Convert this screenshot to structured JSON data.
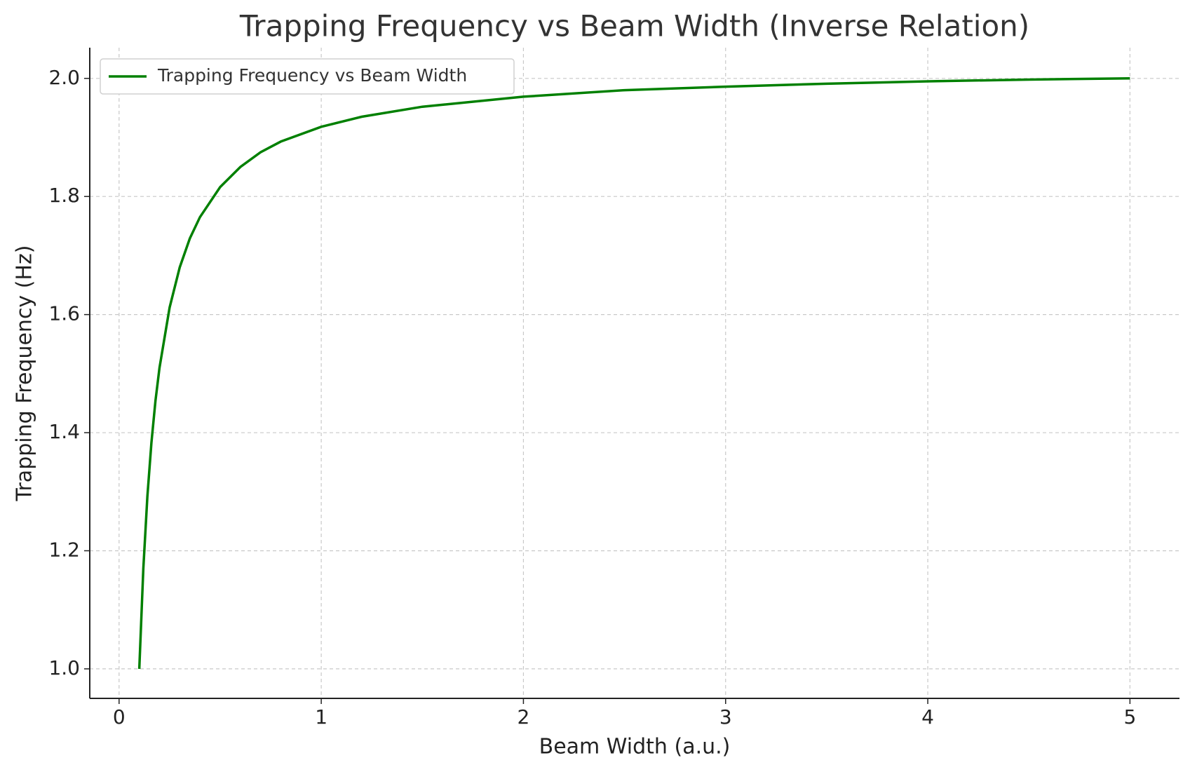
{
  "chart_data": {
    "type": "line",
    "title": "Trapping Frequency vs Beam Width (Inverse Relation)",
    "xlabel": "Beam Width (a.u.)",
    "ylabel": "Trapping Frequency (Hz)",
    "x": [
      0.1,
      0.12,
      0.14,
      0.16,
      0.18,
      0.2,
      0.25,
      0.3,
      0.35,
      0.4,
      0.5,
      0.6,
      0.7,
      0.8,
      1.0,
      1.2,
      1.5,
      2,
      2.5,
      3,
      3.5,
      4,
      4.5,
      5
    ],
    "series": [
      {
        "name": "Trapping Frequency vs Beam Width",
        "color": "#008000",
        "values": [
          1.0,
          1.17,
          1.292,
          1.383,
          1.454,
          1.51,
          1.612,
          1.68,
          1.729,
          1.765,
          1.816,
          1.85,
          1.875,
          1.893,
          1.918,
          1.935,
          1.952,
          1.969,
          1.98,
          1.986,
          1.991,
          1.995,
          1.998,
          2.0
        ]
      }
    ],
    "xlim": [
      -0.145,
      5.245
    ],
    "ylim": [
      0.95,
      2.052
    ],
    "xticks": [
      0,
      1,
      2,
      3,
      4,
      5
    ],
    "yticks": [
      {
        "value": 1.0,
        "label": "1.0"
      },
      1.2,
      1.4,
      1.6,
      1.8,
      {
        "value": 2.0,
        "label": "2.0"
      }
    ],
    "grid": true,
    "legend": "upper left"
  }
}
